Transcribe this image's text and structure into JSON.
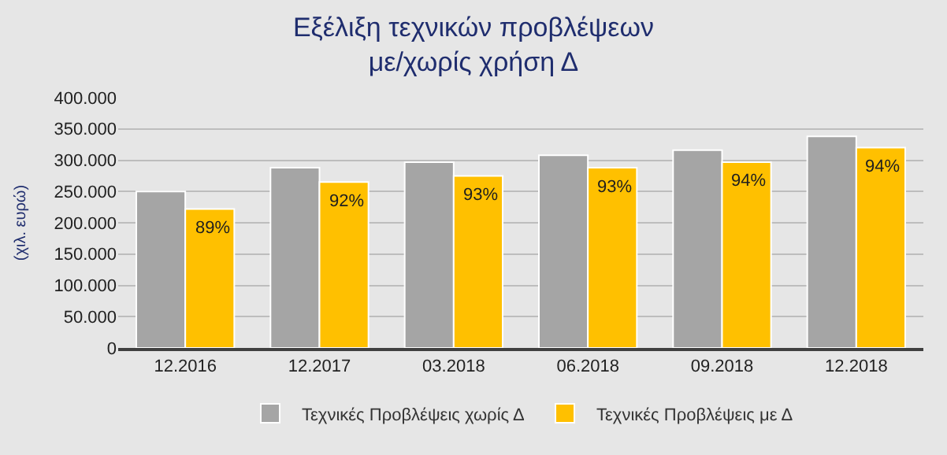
{
  "chart_data": {
    "type": "bar",
    "title": "Εξέλιξη τεχνικών προβλέψεων\nμε/χωρίς χρήση Δ",
    "ylabel": "(χιλ. ευρώ)",
    "categories": [
      "12.2016",
      "12.2017",
      "03.2018",
      "06.2018",
      "09.2018",
      "12.2018"
    ],
    "series": [
      {
        "name": "Τεχνικές Προβλέψεις χωρίς Δ",
        "color": "#a5a5a5",
        "values": [
          250000,
          288000,
          297000,
          308000,
          316000,
          338000
        ]
      },
      {
        "name": "Τεχνικές Προβλέψεις με Δ",
        "color": "#ffc000",
        "values": [
          222000,
          265000,
          275000,
          288000,
          297000,
          320000
        ]
      }
    ],
    "annotations": [
      {
        "text": "89%",
        "x": "12.2016",
        "y": 222000
      },
      {
        "text": "92%",
        "x": "12.2017",
        "y": 265000
      },
      {
        "text": "93%",
        "x": "03.2018",
        "y": 275000
      },
      {
        "text": "93%",
        "x": "06.2018",
        "y": 288000
      },
      {
        "text": "94%",
        "x": "09.2018",
        "y": 297000
      },
      {
        "text": "94%",
        "x": "12.2018",
        "y": 320000
      }
    ],
    "ylim": [
      0,
      400000
    ],
    "yticks": [
      {
        "value": 0,
        "label": "0"
      },
      {
        "value": 50000,
        "label": "50.000"
      },
      {
        "value": 100000,
        "label": "100.000"
      },
      {
        "value": 150000,
        "label": "150.000"
      },
      {
        "value": 200000,
        "label": "200.000"
      },
      {
        "value": 250000,
        "label": "250.000"
      },
      {
        "value": 300000,
        "label": "300.000"
      },
      {
        "value": 350000,
        "label": "350.000"
      },
      {
        "value": 400000,
        "label": "400.000"
      }
    ],
    "grid": "y",
    "legend": "bottom"
  }
}
